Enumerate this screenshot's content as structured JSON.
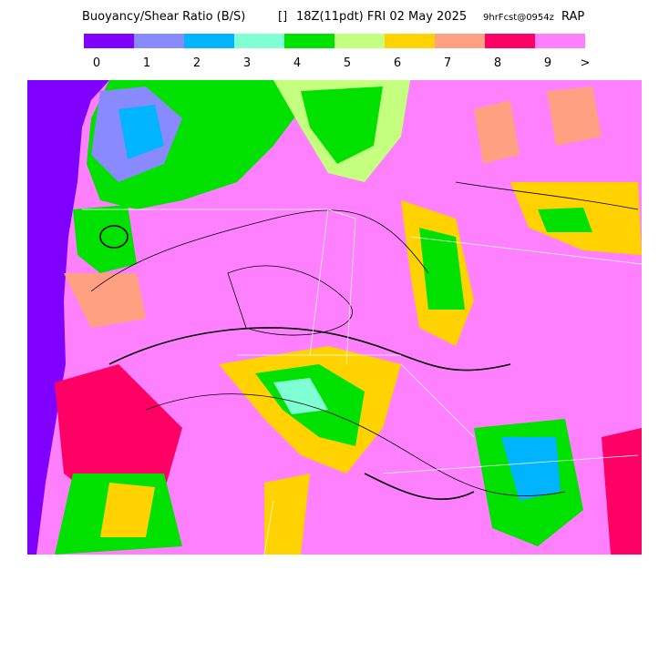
{
  "header": {
    "title": "Buoyancy/Shear Ratio (B/S)",
    "units": "[]",
    "valid": "18Z(11pdt) FRI 02 May 2025",
    "forecast": "9hrFcst@0954z",
    "model": "RAP"
  },
  "legend": {
    "items": [
      {
        "label": "0",
        "color": "#8000ff"
      },
      {
        "label": "1",
        "color": "#8a8aff"
      },
      {
        "label": "2",
        "color": "#00b4ff"
      },
      {
        "label": "3",
        "color": "#80ffd4"
      },
      {
        "label": "4",
        "color": "#00e100"
      },
      {
        "label": "5",
        "color": "#c4ff80"
      },
      {
        "label": "6",
        "color": "#ffd200"
      },
      {
        "label": "7",
        "color": "#ffa082"
      },
      {
        "label": "8",
        "color": "#ff0064"
      },
      {
        "label": "9",
        "color": "#ff80ff"
      }
    ],
    "overflow_label": ">"
  }
}
